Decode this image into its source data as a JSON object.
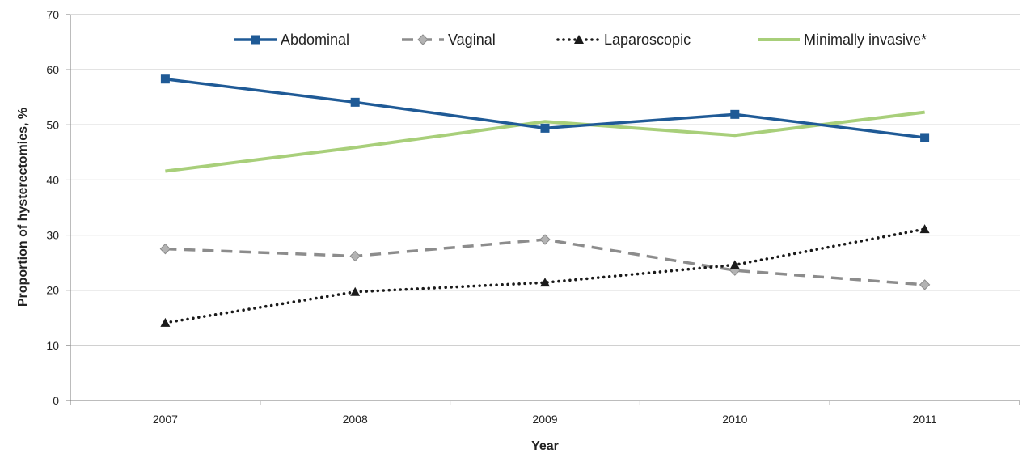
{
  "chart_data": {
    "type": "line",
    "xlabel": "Year",
    "ylabel": "Proportion of hysterectomies, %",
    "categories": [
      "2007",
      "2008",
      "2009",
      "2010",
      "2011"
    ],
    "ylim": [
      0,
      70
    ],
    "yticks": [
      "0",
      "10",
      "20",
      "30",
      "40",
      "50",
      "60",
      "70"
    ],
    "grid": true,
    "legend_position": "top",
    "series": [
      {
        "name": "Abdominal",
        "values": [
          58.3,
          54.1,
          49.4,
          51.9,
          47.7
        ],
        "color": "#1f5a96",
        "style": "solid",
        "marker": "square"
      },
      {
        "name": "Vaginal",
        "values": [
          27.5,
          26.2,
          29.2,
          23.6,
          21.0
        ],
        "color": "#8c8c8c",
        "style": "dashed",
        "marker": "diamond"
      },
      {
        "name": "Laparoscopic",
        "values": [
          14.1,
          19.7,
          21.4,
          24.6,
          31.1
        ],
        "color": "#1a1a1a",
        "style": "dotted",
        "marker": "triangle"
      },
      {
        "name": "Minimally invasive*",
        "values": [
          41.6,
          45.9,
          50.6,
          48.1,
          52.3
        ],
        "color": "#a8cf7a",
        "style": "solid",
        "marker": "none"
      }
    ]
  }
}
